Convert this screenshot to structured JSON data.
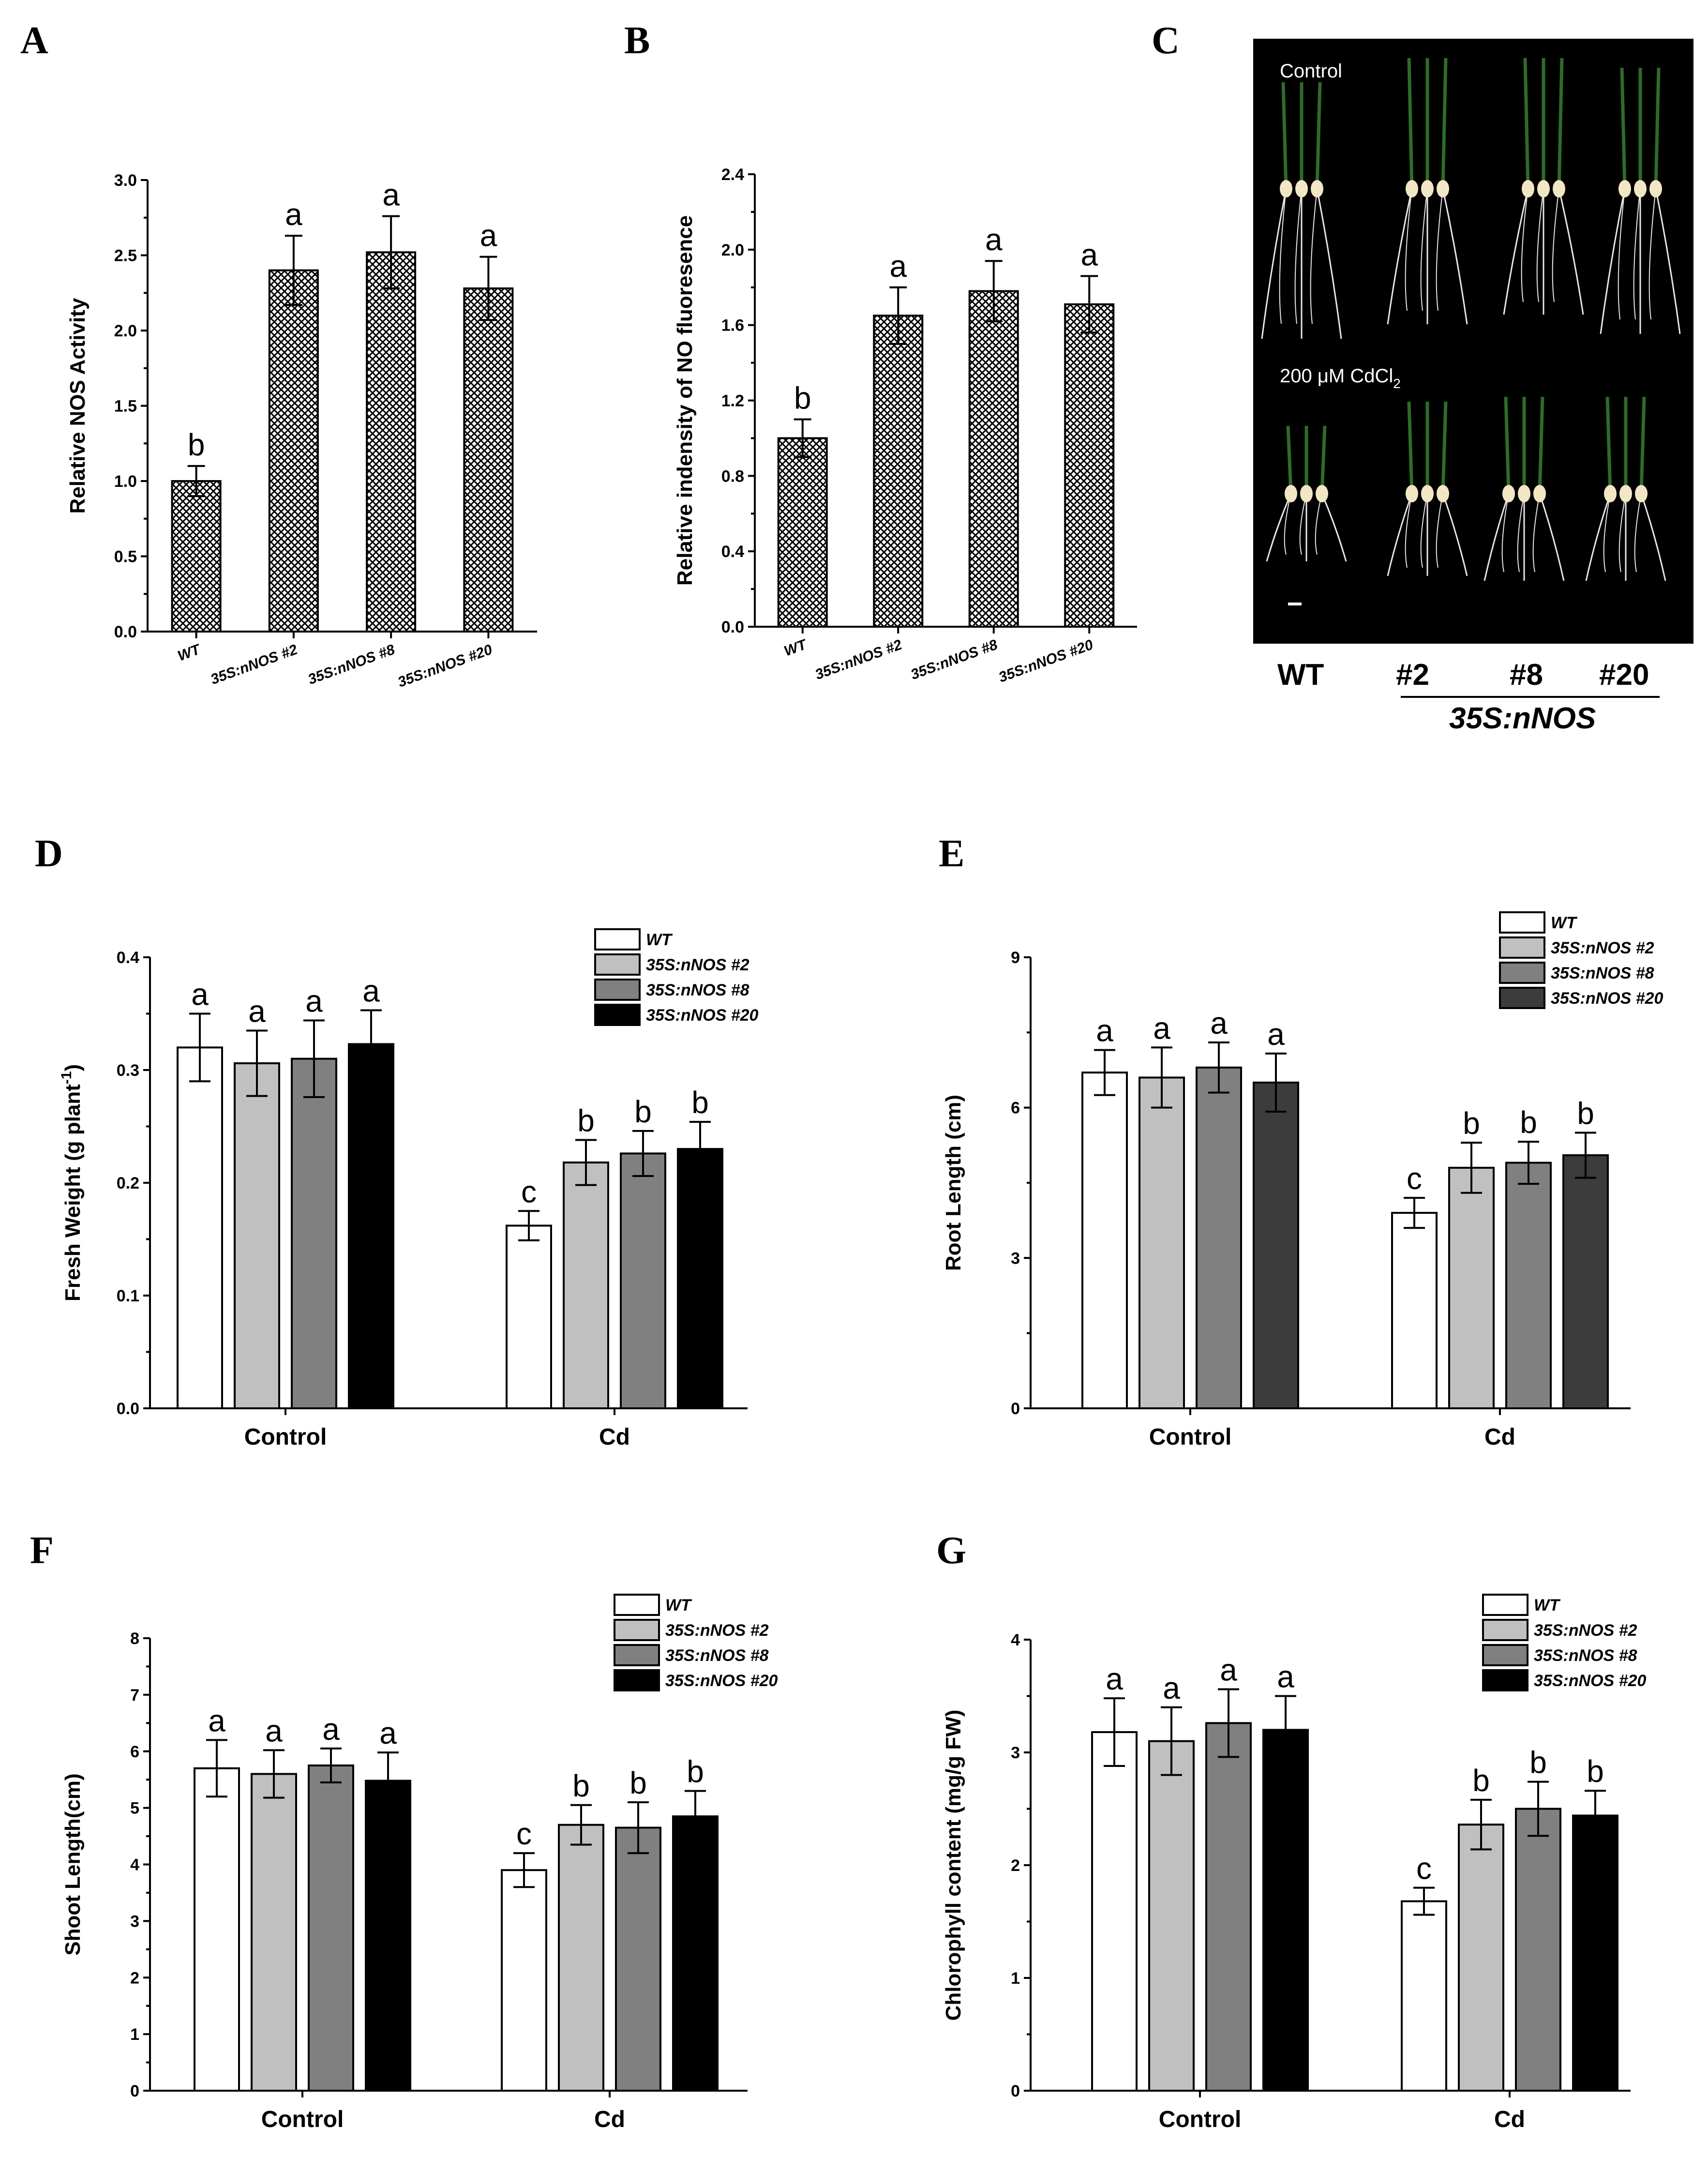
{
  "colors": {
    "crosshatch_bg": "#ffffff",
    "crosshatch_line": "#000000",
    "wt": "#ffffff",
    "nos2": "#c0c0c0",
    "nos8": "#808080",
    "nos20_dark": "#000000",
    "nos20_root": "#3c3c3c",
    "photo_bg": "#000000",
    "root": "#e8e8e8",
    "shoot": "#2f6b2a",
    "seed": "#f2e6c4"
  },
  "panels": {
    "A": "A",
    "B": "B",
    "C": "C",
    "D": "D",
    "E": "E",
    "F": "F",
    "G": "G"
  },
  "photo": {
    "control_label": "Control",
    "cd_label_main": "200 μM CdCl",
    "cd_label_sub": "2",
    "lines": [
      "WT",
      "#2",
      "#8",
      "#20"
    ],
    "group_label": "35S:nNOS"
  },
  "chart_data": [
    {
      "id": "A",
      "type": "bar",
      "style": "crosshatch",
      "title": "",
      "xlabel": "",
      "ylabel": "Relative NOS Activity",
      "ylim": [
        0,
        3.0
      ],
      "yticks": [
        "0.0",
        "0.5",
        "1.0",
        "1.5",
        "2.0",
        "2.5",
        "3.0"
      ],
      "categories": [
        "WT",
        "35S:nNOS #2",
        "35S:nNOS #8",
        "35S:nNOS #20"
      ],
      "values": [
        1.0,
        2.4,
        2.52,
        2.28
      ],
      "errors": [
        0.1,
        0.23,
        0.24,
        0.21
      ],
      "letters": [
        "b",
        "a",
        "a",
        "a"
      ]
    },
    {
      "id": "B",
      "type": "bar",
      "style": "crosshatch",
      "title": "",
      "xlabel": "",
      "ylabel": "Relative indensity of NO fluoresence",
      "ylim": [
        0,
        2.4
      ],
      "yticks": [
        "0.0",
        "0.4",
        "0.8",
        "1.2",
        "1.6",
        "2.0",
        "2.4"
      ],
      "categories": [
        "WT",
        "35S:nNOS #2",
        "35S:nNOS #8",
        "35S:nNOS #20"
      ],
      "values": [
        1.0,
        1.65,
        1.78,
        1.71
      ],
      "errors": [
        0.1,
        0.15,
        0.16,
        0.15
      ],
      "letters": [
        "b",
        "a",
        "a",
        "a"
      ]
    },
    {
      "id": "D",
      "type": "bar",
      "ylabel": "Fresh Weight (g plant",
      "ylabel_sup": "-1",
      "ylabel_end": ")",
      "ylim": [
        0,
        0.4
      ],
      "yticks": [
        "0.0",
        "0.1",
        "0.2",
        "0.3",
        "0.4"
      ],
      "categories": [
        "Control",
        "Cd"
      ],
      "series": [
        {
          "name": "WT",
          "values": [
            0.32,
            0.162
          ],
          "errors": [
            0.03,
            0.013
          ],
          "letters": [
            "a",
            "c"
          ]
        },
        {
          "name": "35S:nNOS #2",
          "values": [
            0.306,
            0.218
          ],
          "errors": [
            0.029,
            0.02
          ],
          "letters": [
            "a",
            "b"
          ]
        },
        {
          "name": "35S:nNOS #8",
          "values": [
            0.31,
            0.226
          ],
          "errors": [
            0.034,
            0.02
          ],
          "letters": [
            "a",
            "b"
          ]
        },
        {
          "name": "35S:nNOS #20",
          "values": [
            0.323,
            0.23
          ],
          "errors": [
            0.03,
            0.024
          ],
          "letters": [
            "a",
            "b"
          ]
        }
      ],
      "legend_position": "top-right"
    },
    {
      "id": "E",
      "type": "bar",
      "ylabel": "Root Length (cm)",
      "ylim": [
        0,
        9
      ],
      "yticks": [
        "0",
        "3",
        "6",
        "9"
      ],
      "categories": [
        "Control",
        "Cd"
      ],
      "series": [
        {
          "name": "WT",
          "values": [
            6.7,
            3.9
          ],
          "errors": [
            0.45,
            0.3
          ],
          "letters": [
            "a",
            "c"
          ]
        },
        {
          "name": "35S:nNOS #2",
          "values": [
            6.6,
            4.8
          ],
          "errors": [
            0.6,
            0.5
          ],
          "letters": [
            "a",
            "b"
          ]
        },
        {
          "name": "35S:nNOS #8",
          "values": [
            6.8,
            4.9
          ],
          "errors": [
            0.5,
            0.42
          ],
          "letters": [
            "a",
            "b"
          ]
        },
        {
          "name": "35S:nNOS #20",
          "values": [
            6.5,
            5.05
          ],
          "errors": [
            0.58,
            0.45
          ],
          "letters": [
            "a",
            "b"
          ]
        }
      ],
      "legend_position": "top-right"
    },
    {
      "id": "F",
      "type": "bar",
      "ylabel": "Shoot Length(cm)",
      "ylim": [
        0,
        8
      ],
      "yticks": [
        "0",
        "1",
        "2",
        "3",
        "4",
        "5",
        "6",
        "7",
        "8"
      ],
      "categories": [
        "Control",
        "Cd"
      ],
      "series": [
        {
          "name": "WT",
          "values": [
            5.7,
            3.9
          ],
          "errors": [
            0.5,
            0.3
          ],
          "letters": [
            "a",
            "c"
          ]
        },
        {
          "name": "35S:nNOS #2",
          "values": [
            5.6,
            4.7
          ],
          "errors": [
            0.42,
            0.35
          ],
          "letters": [
            "a",
            "b"
          ]
        },
        {
          "name": "35S:nNOS #8",
          "values": [
            5.75,
            4.65
          ],
          "errors": [
            0.3,
            0.45
          ],
          "letters": [
            "a",
            "b"
          ]
        },
        {
          "name": "35S:nNOS #20",
          "values": [
            5.48,
            4.85
          ],
          "errors": [
            0.5,
            0.45
          ],
          "letters": [
            "a",
            "b"
          ]
        }
      ],
      "legend_position": "top-right"
    },
    {
      "id": "G",
      "type": "bar",
      "ylabel": "Chlorophyll content (mg/g FW)",
      "ylim": [
        0,
        4
      ],
      "yticks": [
        "0",
        "1",
        "2",
        "3",
        "4"
      ],
      "categories": [
        "Control",
        "Cd"
      ],
      "series": [
        {
          "name": "WT",
          "values": [
            3.18,
            1.68
          ],
          "errors": [
            0.3,
            0.12
          ],
          "letters": [
            "a",
            "c"
          ]
        },
        {
          "name": "35S:nNOS #2",
          "values": [
            3.1,
            2.36
          ],
          "errors": [
            0.3,
            0.22
          ],
          "letters": [
            "a",
            "b"
          ]
        },
        {
          "name": "35S:nNOS #8",
          "values": [
            3.26,
            2.5
          ],
          "errors": [
            0.3,
            0.24
          ],
          "letters": [
            "a",
            "b"
          ]
        },
        {
          "name": "35S:nNOS #20",
          "values": [
            3.2,
            2.44
          ],
          "errors": [
            0.3,
            0.22
          ],
          "letters": [
            "a",
            "b"
          ]
        }
      ],
      "legend_position": "top-right"
    }
  ]
}
